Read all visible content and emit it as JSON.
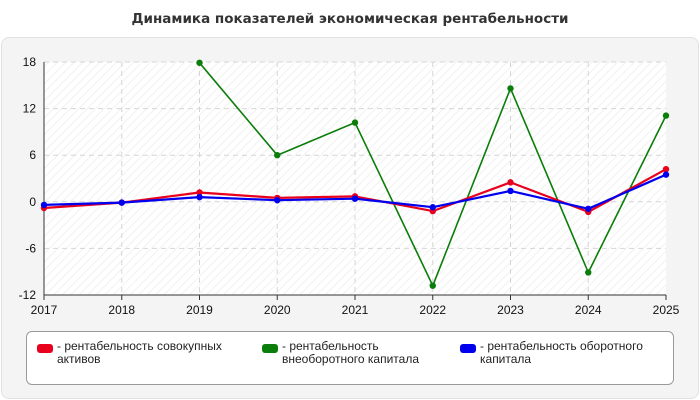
{
  "chart_data": {
    "type": "line",
    "title": "Динамика показателей экономическая рентабельности",
    "categories": [
      "2017",
      "2018",
      "2019",
      "2020",
      "2021",
      "2022",
      "2023",
      "2024",
      "2025"
    ],
    "ylim": [
      -12,
      18
    ],
    "yticks": [
      18,
      12,
      6,
      0,
      -6,
      -12
    ],
    "grid": true,
    "legend_position": "bottom",
    "series": [
      {
        "name": "- рентабельность совокупных активов",
        "color": "#e8001c",
        "values": [
          -0.8,
          -0.1,
          1.2,
          0.5,
          0.7,
          -1.2,
          2.5,
          -1.3,
          4.2
        ]
      },
      {
        "name": "- рентабельность внеоборотного капитала",
        "color": "#0a7d0a",
        "values": [
          null,
          null,
          17.9,
          6.0,
          10.2,
          -10.8,
          14.6,
          -9.1,
          11.1
        ]
      },
      {
        "name": "- рентабельность оборотного капитала",
        "color": "#0000ee",
        "values": [
          -0.4,
          -0.1,
          0.6,
          0.2,
          0.4,
          -0.7,
          1.4,
          -0.9,
          3.5
        ]
      }
    ]
  },
  "legend": {
    "items": [
      {
        "line1": "- рентабельность совокупных",
        "line2": "активов",
        "color": "#e8001c"
      },
      {
        "line1": "- рентабельность",
        "line2": "внеоборотного капитала",
        "color": "#0a7d0a"
      },
      {
        "line1": "- рентабельность оборотного",
        "line2": "капитала",
        "color": "#0000ee"
      }
    ]
  }
}
